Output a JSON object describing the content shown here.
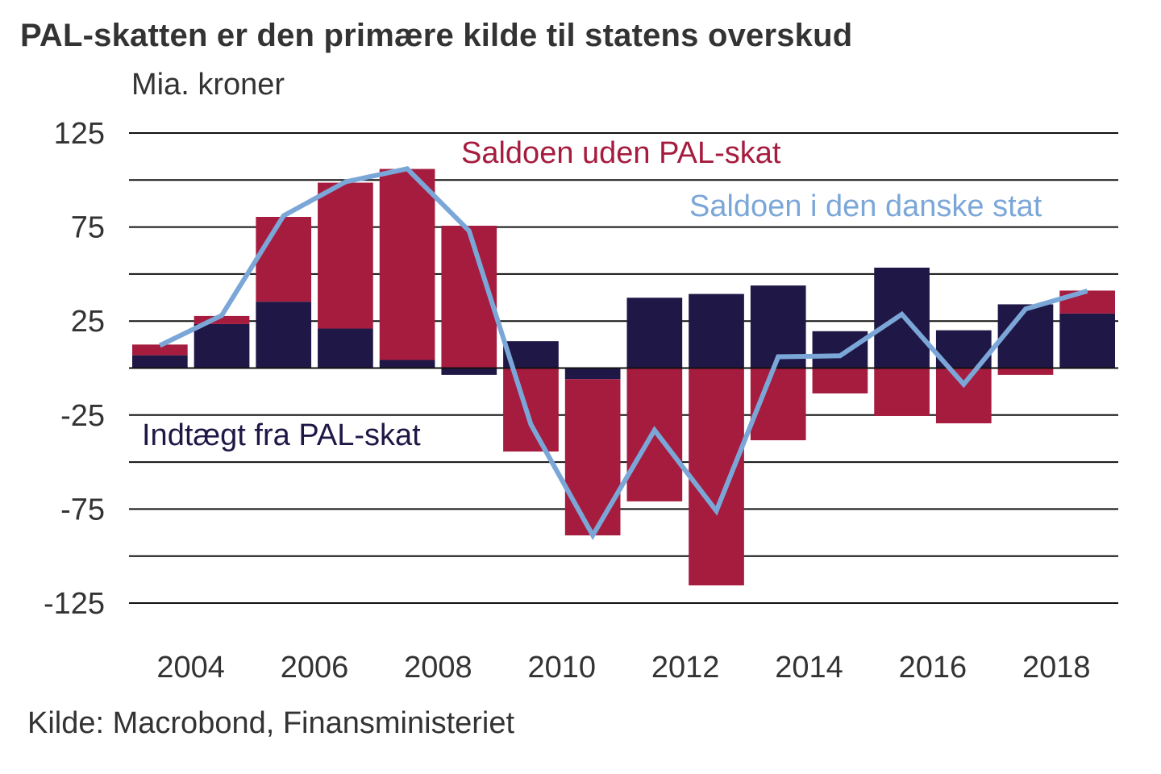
{
  "title": "PAL-skatten er den primære kilde til statens overskud",
  "unit": "Mia. kroner",
  "source": "Kilde: Macrobond, Finansministeriet",
  "colors": {
    "pal_income": "#1F1746",
    "balance_excl_pal": "#A51C3E",
    "state_balance": "#7BA7D8",
    "text": "#333333",
    "grid": "#111111"
  },
  "chart_data": {
    "type": "bar",
    "stacked": true,
    "title": "PAL-skatten er den primære kilde til statens overskud",
    "ylabel": "Mia. kroner",
    "xlabel": "",
    "ylim": [
      -125,
      125
    ],
    "yticks": [
      125,
      100,
      75,
      50,
      25,
      0,
      -25,
      -50,
      -75,
      -100,
      -125
    ],
    "ytick_labels": [
      "125",
      "",
      "75",
      "",
      "25",
      "",
      "-25",
      "",
      "-75",
      "",
      "-125"
    ],
    "categories": [
      2003,
      2004,
      2005,
      2006,
      2007,
      2008,
      2009,
      2010,
      2011,
      2012,
      2013,
      2014,
      2015,
      2016,
      2017,
      2018
    ],
    "xtick_labels": [
      "2004",
      "2006",
      "2008",
      "2010",
      "2012",
      "2014",
      "2016",
      "2018"
    ],
    "grid": true,
    "series": [
      {
        "name": "Indtægt fra PAL-skat",
        "type": "bar",
        "color": "#1F1746",
        "values": [
          6.8,
          23.4,
          35.3,
          21.0,
          4.3,
          -3.6,
          14.3,
          -5.9,
          37.4,
          39.4,
          43.9,
          19.6,
          53.4,
          20.1,
          33.9,
          29.0
        ]
      },
      {
        "name": "Saldoen uden PAL-skat",
        "type": "bar",
        "color": "#A51C3E",
        "values": [
          5.7,
          4.3,
          45.1,
          77.6,
          101.6,
          75.7,
          -44.4,
          -83.1,
          -70.9,
          -115.6,
          -38.4,
          -13.5,
          -25.5,
          -29.4,
          -3.6,
          12.2
        ]
      },
      {
        "name": "Saldoen i den danske stat",
        "type": "line",
        "color": "#7BA7D8",
        "values": [
          12,
          28,
          81,
          99,
          106,
          73,
          -30,
          -89,
          -33,
          -76,
          6,
          6.5,
          28.6,
          -8.6,
          31.4,
          41
        ]
      }
    ],
    "annotations": [
      {
        "text": "Saldoen uden PAL-skat",
        "series": "Saldoen uden PAL-skat",
        "placement": "top-center"
      },
      {
        "text": "Saldoen i den danske stat",
        "series": "Saldoen i den danske stat",
        "placement": "top-right"
      },
      {
        "text": "Indtægt fra PAL-skat",
        "series": "Indtægt fra PAL-skat",
        "placement": "middle-left"
      }
    ]
  }
}
